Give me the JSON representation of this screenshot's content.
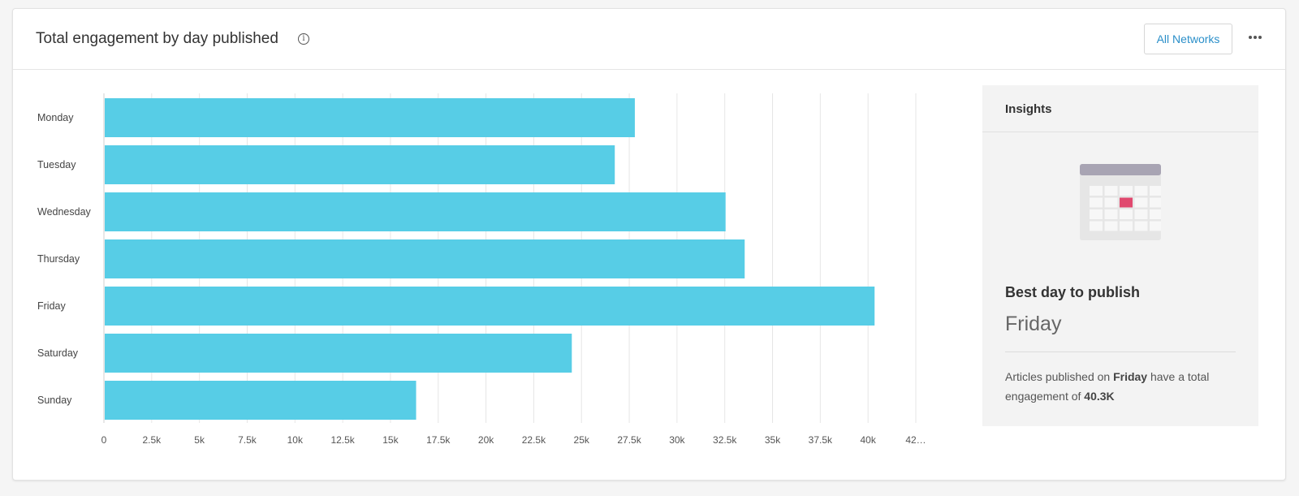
{
  "header": {
    "title": "Total engagement by day published",
    "info_icon": "info-icon",
    "network_button": "All Networks",
    "more_icon": "more-horizontal-icon"
  },
  "colors": {
    "bar": "#57cde6",
    "accent_link": "#2b8fc9",
    "calendar_highlight": "#e0486e",
    "calendar_header": "#a8a4b3"
  },
  "chart_data": {
    "type": "bar",
    "orientation": "horizontal",
    "categories": [
      "Monday",
      "Tuesday",
      "Wednesday",
      "Thursday",
      "Friday",
      "Saturday",
      "Sunday"
    ],
    "values": [
      27750,
      26700,
      32500,
      33500,
      40300,
      24450,
      16300
    ],
    "xticks": [
      "0",
      "2.5k",
      "5k",
      "7.5k",
      "10k",
      "12.5k",
      "15k",
      "17.5k",
      "20k",
      "22.5k",
      "25k",
      "27.5k",
      "30k",
      "32.5k",
      "35k",
      "37.5k",
      "40k",
      "42…"
    ],
    "xlim": [
      0,
      42500
    ],
    "grid": true,
    "title": "",
    "xlabel": "",
    "ylabel": ""
  },
  "insights": {
    "title": "Insights",
    "icon": "calendar-icon",
    "best_label": "Best day to publish",
    "best_day": "Friday",
    "desc_prefix": "Articles published on ",
    "desc_day": "Friday",
    "desc_middle": " have a total engagement of ",
    "desc_value": "40.3K"
  }
}
